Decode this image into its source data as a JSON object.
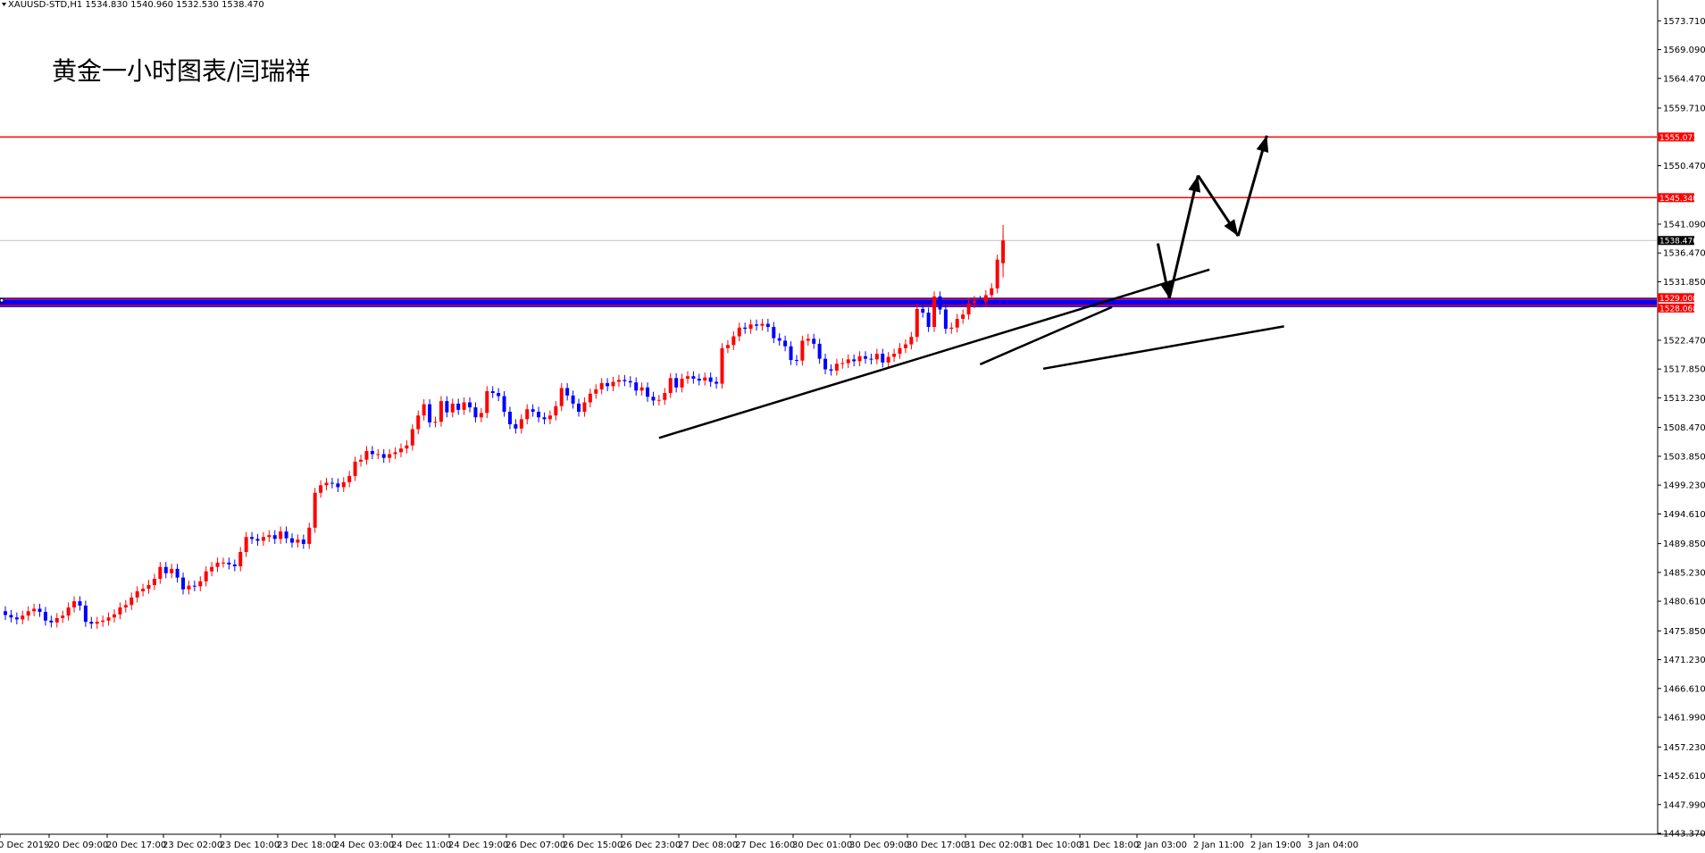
{
  "header": {
    "symbol_line": "XAUUSD-STD,H1  1534.830 1540.960 1532.530 1538.470"
  },
  "title": "黄金一小时图表/闫瑞祥",
  "colors": {
    "up": "#ff0000",
    "down": "#0000ff",
    "level_line": "#ff0000",
    "band_fill": "#0000ff",
    "price_line": "#c0c0c0",
    "annotation": "#000000"
  },
  "chart_data": {
    "type": "candlestick",
    "symbol": "XAUUSD-STD",
    "timeframe": "H1",
    "ylim": [
      1443.37,
      1575.9
    ],
    "y_ticks": [
      "1573.710",
      "1569.090",
      "1564.470",
      "1559.710",
      "1555.071",
      "1550.470",
      "1545.340",
      "1541.090",
      "1538.470",
      "1536.470",
      "1531.850",
      "1529.008",
      "1528.068",
      "1522.470",
      "1517.850",
      "1513.230",
      "1508.470",
      "1503.850",
      "1499.230",
      "1494.610",
      "1489.850",
      "1485.230",
      "1480.610",
      "1475.850",
      "1471.230",
      "1466.610",
      "1461.990",
      "1457.230",
      "1452.610",
      "1447.990",
      "1443.370"
    ],
    "x_ticks": [
      "0 Dec 2019",
      "20 Dec 09:00",
      "20 Dec 17:00",
      "23 Dec 02:00",
      "23 Dec 10:00",
      "23 Dec 18:00",
      "24 Dec 03:00",
      "24 Dec 11:00",
      "24 Dec 19:00",
      "26 Dec 07:00",
      "26 Dec 15:00",
      "26 Dec 23:00",
      "27 Dec 08:00",
      "27 Dec 16:00",
      "30 Dec 01:00",
      "30 Dec 09:00",
      "30 Dec 17:00",
      "31 Dec 02:00",
      "31 Dec 10:00",
      "31 Dec 18:00",
      "2 Jan 03:00",
      "2 Jan 11:00",
      "2 Jan 19:00",
      "3 Jan 04:00"
    ],
    "last_price": 1538.47,
    "current_bar": {
      "open": 1534.83,
      "high": 1540.96,
      "low": 1532.53,
      "close": 1538.47
    },
    "levels": [
      {
        "price": 1555.071,
        "label": "1555.071",
        "style": "red-line"
      },
      {
        "price": 1545.34,
        "label": "1545.340",
        "style": "red-line"
      },
      {
        "price": 1529.008,
        "label": "1529.008",
        "style": "band-top"
      },
      {
        "price": 1528.068,
        "label": "1528.068",
        "style": "band-bottom"
      }
    ],
    "candles": [
      [
        1479.0,
        1478.4
      ],
      [
        1478.4,
        1478.0
      ],
      [
        1478.0,
        1477.7
      ],
      [
        1477.7,
        1478.3
      ],
      [
        1478.3,
        1479.0
      ],
      [
        1479.0,
        1479.4
      ],
      [
        1479.4,
        1478.9
      ],
      [
        1478.9,
        1477.5
      ],
      [
        1477.5,
        1477.2
      ],
      [
        1477.2,
        1477.9
      ],
      [
        1477.9,
        1478.3
      ],
      [
        1478.3,
        1479.6
      ],
      [
        1479.6,
        1480.6
      ],
      [
        1480.6,
        1479.9
      ],
      [
        1479.9,
        1477.3
      ],
      [
        1477.3,
        1477.0
      ],
      [
        1477.0,
        1477.3
      ],
      [
        1477.3,
        1477.5
      ],
      [
        1477.5,
        1478.0
      ],
      [
        1478.0,
        1478.5
      ],
      [
        1478.5,
        1479.6
      ],
      [
        1479.6,
        1480.0
      ],
      [
        1480.0,
        1481.2
      ],
      [
        1481.2,
        1482.2
      ],
      [
        1482.2,
        1482.6
      ],
      [
        1482.6,
        1483.2
      ],
      [
        1483.2,
        1484.2
      ],
      [
        1484.2,
        1486.1
      ],
      [
        1486.1,
        1485.1
      ],
      [
        1485.1,
        1485.8
      ],
      [
        1485.8,
        1484.4
      ],
      [
        1484.4,
        1482.5
      ],
      [
        1482.5,
        1483.1
      ],
      [
        1483.1,
        1483.0
      ],
      [
        1483.0,
        1483.8
      ],
      [
        1483.8,
        1485.4
      ],
      [
        1485.4,
        1486.1
      ],
      [
        1486.1,
        1486.8
      ],
      [
        1486.8,
        1486.8
      ],
      [
        1486.8,
        1486.5
      ],
      [
        1486.5,
        1486.2
      ],
      [
        1486.2,
        1488.5
      ],
      [
        1488.5,
        1490.9
      ],
      [
        1490.9,
        1490.6
      ],
      [
        1490.6,
        1490.3
      ],
      [
        1490.3,
        1490.9
      ],
      [
        1490.9,
        1491.2
      ],
      [
        1491.2,
        1490.6
      ],
      [
        1490.6,
        1491.8
      ],
      [
        1491.8,
        1490.7
      ],
      [
        1490.7,
        1490.0
      ],
      [
        1490.0,
        1490.5
      ],
      [
        1490.5,
        1489.8
      ],
      [
        1489.8,
        1492.4
      ],
      [
        1492.4,
        1498.0
      ],
      [
        1498.0,
        1499.2
      ],
      [
        1499.2,
        1499.6
      ],
      [
        1499.6,
        1499.5
      ],
      [
        1499.5,
        1498.9
      ],
      [
        1498.9,
        1499.7
      ],
      [
        1499.7,
        1500.7
      ],
      [
        1500.7,
        1503.0
      ],
      [
        1503.0,
        1503.3
      ],
      [
        1503.3,
        1504.7
      ],
      [
        1504.7,
        1504.2
      ],
      [
        1504.2,
        1504.2
      ],
      [
        1504.2,
        1503.6
      ],
      [
        1503.6,
        1504.2
      ],
      [
        1504.2,
        1504.5
      ],
      [
        1504.5,
        1505.1
      ],
      [
        1505.1,
        1505.6
      ],
      [
        1505.6,
        1508.2
      ],
      [
        1508.2,
        1510.4
      ],
      [
        1510.4,
        1512.2
      ],
      [
        1512.2,
        1509.3
      ],
      [
        1509.3,
        1509.4
      ],
      [
        1509.4,
        1512.7
      ],
      [
        1512.7,
        1510.9
      ],
      [
        1510.9,
        1512.3
      ],
      [
        1512.3,
        1511.3
      ],
      [
        1511.3,
        1512.5
      ],
      [
        1512.5,
        1511.7
      ],
      [
        1511.7,
        1510.1
      ],
      [
        1510.1,
        1510.8
      ],
      [
        1510.8,
        1514.3
      ],
      [
        1514.3,
        1514.0
      ],
      [
        1514.0,
        1513.5
      ],
      [
        1513.5,
        1511.0
      ],
      [
        1511.0,
        1509.0
      ],
      [
        1509.0,
        1508.3
      ],
      [
        1508.3,
        1509.8
      ],
      [
        1509.8,
        1511.4
      ],
      [
        1511.4,
        1511.0
      ],
      [
        1511.0,
        1510.1
      ],
      [
        1510.1,
        1509.8
      ],
      [
        1509.8,
        1510.4
      ],
      [
        1510.4,
        1511.9
      ],
      [
        1511.9,
        1514.8
      ],
      [
        1514.8,
        1513.6
      ],
      [
        1513.6,
        1512.3
      ],
      [
        1512.3,
        1511.0
      ],
      [
        1511.0,
        1512.5
      ],
      [
        1512.5,
        1513.9
      ],
      [
        1513.9,
        1514.6
      ],
      [
        1514.6,
        1515.6
      ],
      [
        1515.6,
        1515.1
      ],
      [
        1515.1,
        1515.8
      ],
      [
        1515.8,
        1516.1
      ],
      [
        1516.1,
        1515.9
      ],
      [
        1515.9,
        1515.7
      ],
      [
        1515.7,
        1514.4
      ],
      [
        1514.4,
        1514.9
      ],
      [
        1514.9,
        1513.4
      ],
      [
        1513.4,
        1512.8
      ],
      [
        1512.8,
        1512.9
      ],
      [
        1512.9,
        1514.0
      ],
      [
        1514.0,
        1516.4
      ],
      [
        1516.4,
        1514.9
      ],
      [
        1514.9,
        1516.3
      ],
      [
        1516.3,
        1516.7
      ],
      [
        1516.7,
        1516.3
      ],
      [
        1516.3,
        1516.0
      ],
      [
        1516.0,
        1516.5
      ],
      [
        1516.5,
        1515.8
      ],
      [
        1515.8,
        1515.5
      ],
      [
        1515.5,
        1521.2
      ],
      [
        1521.2,
        1521.7
      ],
      [
        1521.7,
        1523.1
      ],
      [
        1523.1,
        1524.5
      ],
      [
        1524.5,
        1524.3
      ],
      [
        1524.3,
        1525.0
      ],
      [
        1525.0,
        1524.8
      ],
      [
        1524.8,
        1525.1
      ],
      [
        1525.1,
        1524.6
      ],
      [
        1524.6,
        1522.8
      ],
      [
        1522.8,
        1522.4
      ],
      [
        1522.4,
        1521.5
      ],
      [
        1521.5,
        1519.3
      ],
      [
        1519.3,
        1519.2
      ],
      [
        1519.2,
        1522.4
      ],
      [
        1522.4,
        1522.7
      ],
      [
        1522.7,
        1521.9
      ],
      [
        1521.9,
        1519.5
      ],
      [
        1519.5,
        1517.8
      ],
      [
        1517.8,
        1517.6
      ],
      [
        1517.6,
        1518.7
      ],
      [
        1518.7,
        1518.8
      ],
      [
        1518.8,
        1519.4
      ],
      [
        1519.4,
        1519.1
      ],
      [
        1519.1,
        1519.9
      ],
      [
        1519.9,
        1519.5
      ],
      [
        1519.5,
        1519.4
      ],
      [
        1519.4,
        1520.3
      ],
      [
        1520.3,
        1518.9
      ],
      [
        1518.9,
        1519.8
      ],
      [
        1519.8,
        1520.3
      ],
      [
        1520.3,
        1521.2
      ],
      [
        1521.2,
        1521.8
      ],
      [
        1521.8,
        1523.0
      ],
      [
        1523.0,
        1527.5
      ],
      [
        1527.5,
        1526.9
      ],
      [
        1526.9,
        1524.6
      ],
      [
        1524.6,
        1529.5
      ],
      [
        1529.5,
        1527.4
      ],
      [
        1527.4,
        1524.3
      ],
      [
        1524.3,
        1524.5
      ],
      [
        1524.5,
        1525.9
      ],
      [
        1525.9,
        1526.6
      ],
      [
        1526.6,
        1528.4
      ],
      [
        1528.4,
        1528.8
      ],
      [
        1528.8,
        1528.6
      ],
      [
        1528.6,
        1529.7
      ],
      [
        1529.7,
        1530.8
      ],
      [
        1530.8,
        1535.4
      ],
      [
        1534.83,
        1538.47
      ]
    ],
    "annotations": [
      {
        "type": "trendline",
        "from": [
          114,
          1506.8
        ],
        "to": [
          210,
          1533.8
        ]
      },
      {
        "type": "trendline",
        "from": [
          181,
          1517.9
        ],
        "to": [
          223,
          1524.7
        ]
      },
      {
        "type": "trendline",
        "from": [
          170,
          1518.6
        ],
        "to": [
          193,
          1527.8
        ]
      },
      {
        "type": "path-arrows",
        "points": [
          [
            201,
            1538.0
          ],
          [
            203,
            1529.2
          ],
          [
            208,
            1548.9
          ],
          [
            215,
            1539.2
          ],
          [
            220,
            1555.3
          ]
        ]
      }
    ]
  }
}
